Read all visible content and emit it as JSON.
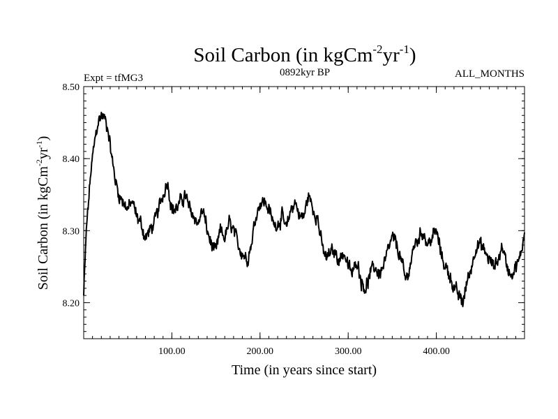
{
  "chart_data": {
    "type": "line",
    "title_main": "Soil Carbon (in kgCm",
    "title_sup1": "-2",
    "title_mid": "yr",
    "title_sup2": "-1",
    "title_end": ")",
    "subtitle_left": "Expt = tfMG3",
    "subtitle_center": "0892kyr BP",
    "subtitle_right": "ALL_MONTHS",
    "xlabel": "Time (in years since start)",
    "ylabel_main": "Soil Carbon (in kgCm",
    "ylabel_sup1": "-2",
    "ylabel_mid": "yr",
    "ylabel_sup2": "-1",
    "ylabel_end": ")",
    "xlim": [
      0,
      500
    ],
    "ylim": [
      8.15,
      8.5
    ],
    "x_ticks": [
      {
        "value": 100,
        "label": "100.00"
      },
      {
        "value": 200,
        "label": "200.00"
      },
      {
        "value": 300,
        "label": "300.00"
      },
      {
        "value": 400,
        "label": "400.00"
      }
    ],
    "y_ticks": [
      {
        "value": 8.2,
        "label": "8.20"
      },
      {
        "value": 8.3,
        "label": "8.30"
      },
      {
        "value": 8.4,
        "label": "8.40"
      },
      {
        "value": 8.5,
        "label": "8.50"
      }
    ],
    "line_color": "#000000",
    "series": [
      {
        "name": "Soil Carbon",
        "anchors_x": [
          0,
          3,
          8,
          12,
          16,
          20,
          24,
          28,
          32,
          36,
          40,
          45,
          50,
          55,
          60,
          65,
          70,
          75,
          80,
          85,
          90,
          95,
          100,
          105,
          110,
          115,
          120,
          125,
          130,
          135,
          140,
          145,
          150,
          155,
          160,
          165,
          170,
          175,
          180,
          185,
          190,
          195,
          200,
          205,
          210,
          215,
          220,
          225,
          230,
          235,
          240,
          245,
          250,
          255,
          260,
          265,
          270,
          275,
          280,
          285,
          290,
          295,
          300,
          305,
          310,
          315,
          320,
          325,
          330,
          335,
          340,
          345,
          350,
          355,
          360,
          365,
          370,
          375,
          380,
          385,
          390,
          395,
          400,
          405,
          410,
          415,
          420,
          425,
          430,
          435,
          440,
          445,
          450,
          455,
          460,
          465,
          470,
          475,
          480,
          485,
          490,
          495,
          500
        ],
        "anchors_y": [
          8.21,
          8.3,
          8.38,
          8.42,
          8.45,
          8.46,
          8.455,
          8.44,
          8.4,
          8.37,
          8.35,
          8.34,
          8.33,
          8.34,
          8.32,
          8.31,
          8.29,
          8.3,
          8.31,
          8.33,
          8.35,
          8.37,
          8.33,
          8.33,
          8.34,
          8.35,
          8.33,
          8.32,
          8.31,
          8.33,
          8.3,
          8.28,
          8.27,
          8.3,
          8.29,
          8.31,
          8.3,
          8.28,
          8.27,
          8.26,
          8.28,
          8.32,
          8.34,
          8.34,
          8.33,
          8.31,
          8.31,
          8.32,
          8.3,
          8.33,
          8.34,
          8.32,
          8.32,
          8.35,
          8.33,
          8.32,
          8.28,
          8.26,
          8.27,
          8.27,
          8.26,
          8.27,
          8.25,
          8.24,
          8.26,
          8.23,
          8.22,
          8.24,
          8.25,
          8.24,
          8.25,
          8.27,
          8.29,
          8.28,
          8.26,
          8.23,
          8.25,
          8.28,
          8.29,
          8.3,
          8.28,
          8.29,
          8.3,
          8.27,
          8.25,
          8.24,
          8.22,
          8.21,
          8.2,
          8.23,
          8.25,
          8.28,
          8.28,
          8.27,
          8.26,
          8.25,
          8.26,
          8.28,
          8.25,
          8.24,
          8.25,
          8.26,
          8.3
        ],
        "noise_amplitude": 0.012
      }
    ]
  }
}
